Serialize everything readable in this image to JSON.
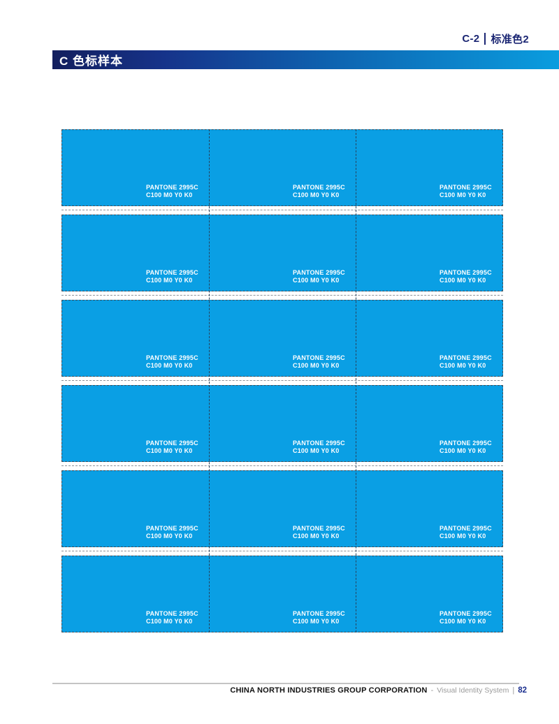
{
  "page": {
    "section_label": "C-2",
    "section_title": "标准色2",
    "header_title": "C 色标样本"
  },
  "swatch_grid": {
    "rows": 6,
    "columns": 3,
    "cell": {
      "pantone": "PANTONE 2995C",
      "cmyk": "C100 M0 Y0 K0"
    }
  },
  "footer": {
    "company": "CHINA NORTH INDUSTRIES GROUP CORPORATION",
    "separator": "-",
    "system": "Visual Identity System",
    "divider": "|",
    "page_number": "82"
  },
  "colors": {
    "accent_navy": "#1B2673",
    "header_gradient_start": "#131F5E",
    "header_gradient_end": "#0A9DDF",
    "pantone_2995c_hex": "#0A9FE4",
    "page_number_blue": "#1B2F8F"
  }
}
